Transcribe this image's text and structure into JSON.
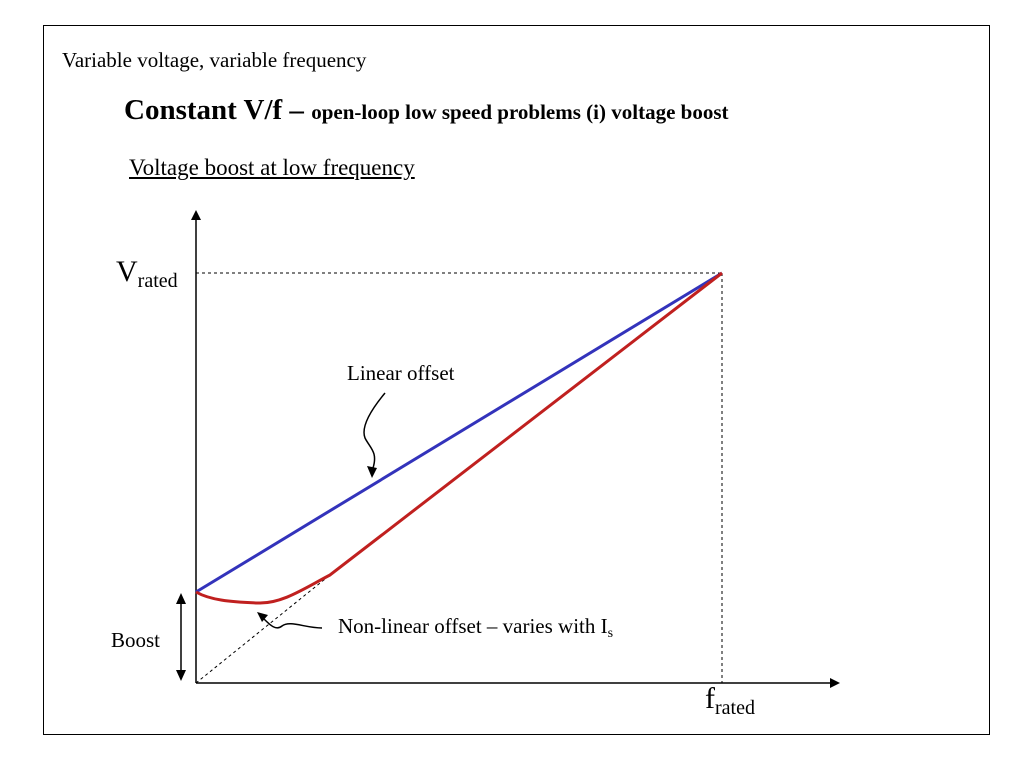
{
  "slide": {
    "heading": "Variable voltage, variable frequency",
    "title_main": "Constant V/f – ",
    "title_rest": "open-loop low speed problems (i) voltage boost",
    "subtitle": "Voltage boost at low frequency"
  },
  "diagram": {
    "y_axis_label": "V",
    "y_axis_label_sub": "rated",
    "x_axis_label": "f",
    "x_axis_label_sub": "rated",
    "linear_label": "Linear offset",
    "nonlinear_label": "Non-linear offset – varies with I",
    "nonlinear_label_sub": "s",
    "boost_label": "Boost",
    "colors": {
      "linear_offset": "#3333BB",
      "nonlinear_offset": "#C0201F",
      "axes": "#000000"
    }
  }
}
